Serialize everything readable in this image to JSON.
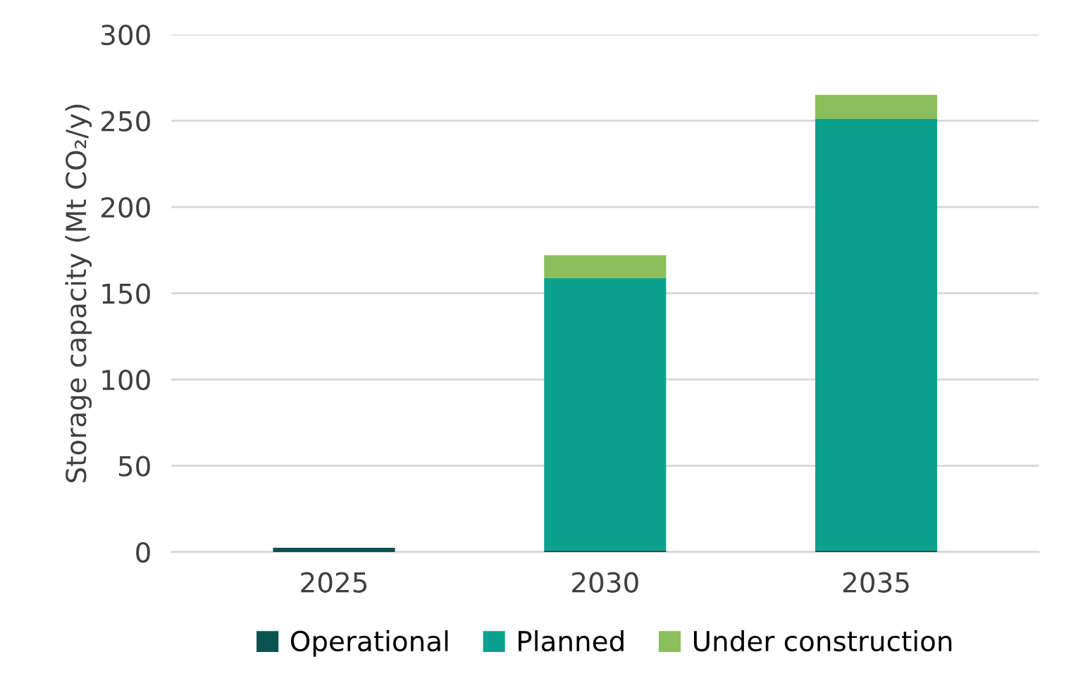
{
  "chart_data": {
    "type": "bar",
    "stacked": true,
    "ylabel": "Storage capacity (Mt CO₂/y)",
    "categories": [
      "2025",
      "2030",
      "2035"
    ],
    "series": [
      {
        "name": "Operational",
        "color": "#0b5350",
        "values": [
          2.5,
          1,
          1
        ]
      },
      {
        "name": "Planned",
        "color": "#0aa28f",
        "values": [
          0,
          158,
          250
        ]
      },
      {
        "name": "Under construction",
        "color": "#8bbf5c",
        "values": [
          0,
          13,
          14
        ]
      }
    ],
    "ylim": [
      0,
      300
    ],
    "yticks": [
      0,
      50,
      100,
      150,
      200,
      250,
      300
    ],
    "grid": "y",
    "legend": "bottom"
  }
}
